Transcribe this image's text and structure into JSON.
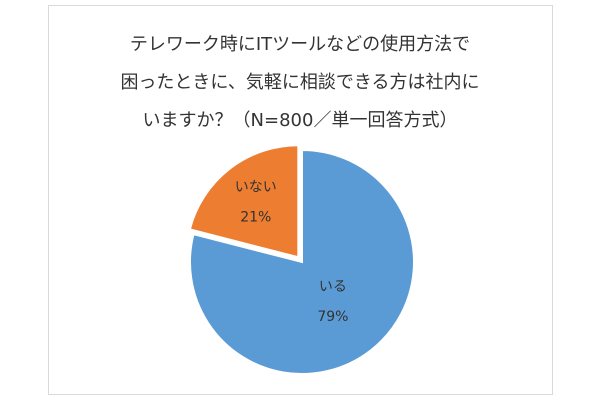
{
  "chart_data": {
    "type": "pie",
    "title": [
      "テレワーク時にITツールなどの使用方法で",
      "困ったときに、気軽に相談できる方は社内に",
      "いますか？（N=800／単一回答方式）"
    ],
    "categories": [
      "いる",
      "いない"
    ],
    "values": [
      79,
      21
    ],
    "value_labels": [
      "79%",
      "21%"
    ],
    "colors": [
      "#5b9bd5",
      "#ed7d31"
    ]
  }
}
